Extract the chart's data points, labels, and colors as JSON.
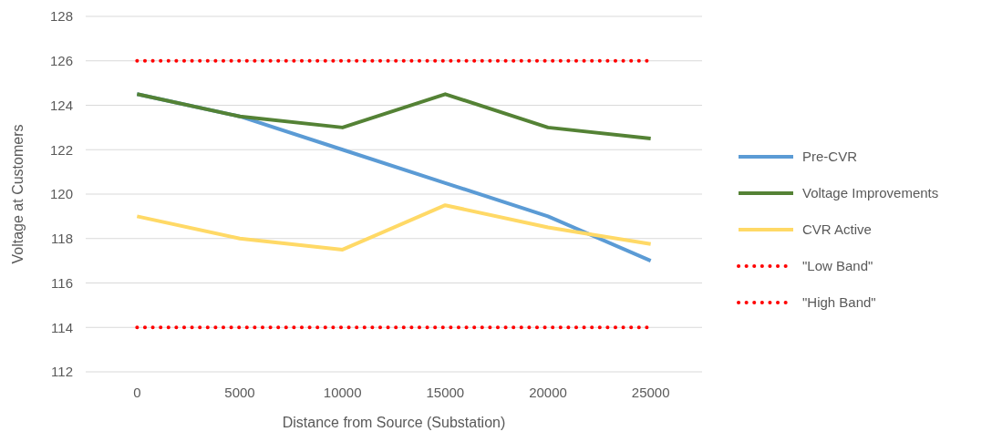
{
  "chart_data": {
    "type": "line",
    "xlabel": "Distance from Source (Substation)",
    "ylabel": "Voltage at Customers",
    "categories": [
      "0",
      "5000",
      "10000",
      "15000",
      "20000",
      "25000"
    ],
    "series": [
      {
        "name": "Pre-CVR",
        "color": "#5b9bd5",
        "values": [
          124.5,
          123.5,
          122,
          120.5,
          119,
          117
        ]
      },
      {
        "name": "Voltage Improvements",
        "color": "#548235",
        "values": [
          124.5,
          123.5,
          123,
          124.5,
          123,
          122.5
        ]
      },
      {
        "name": "CVR Active",
        "color": "#ffd966",
        "values": [
          119,
          118,
          117.5,
          119.5,
          118.5,
          117.75
        ]
      },
      {
        "name": "\"Low Band\"",
        "color": "#ff0000",
        "line_style": "dotted",
        "values": [
          126,
          126,
          126,
          126,
          126,
          126
        ]
      },
      {
        "name": "\"High Band\"",
        "color": "#ff0000",
        "line_style": "dotted",
        "values": [
          114,
          114,
          114,
          114,
          114,
          114
        ]
      }
    ],
    "ylim": [
      112,
      128
    ],
    "yticks": [
      112,
      114,
      116,
      118,
      120,
      122,
      124,
      126,
      128
    ],
    "grid": "y",
    "legend": "right",
    "line_style": "solid",
    "marker": "none"
  }
}
